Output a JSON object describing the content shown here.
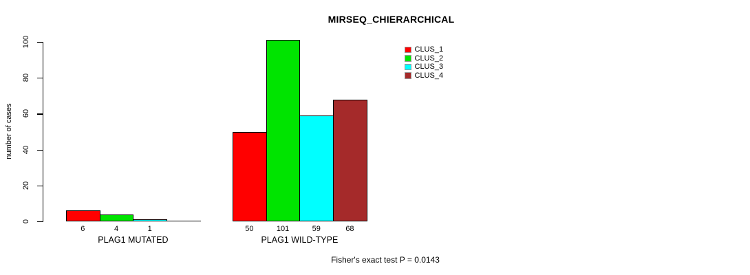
{
  "chart_data": {
    "type": "bar",
    "title": "MIRSEQ_CHIERARCHICAL",
    "ylabel": "number of cases",
    "xlabel": "",
    "ylim": [
      0,
      100
    ],
    "yticks": [
      0,
      20,
      40,
      60,
      80,
      100
    ],
    "grid": false,
    "legend_position": "top-right",
    "series": [
      {
        "name": "CLUS_1",
        "color": "#FF0000"
      },
      {
        "name": "CLUS_2",
        "color": "#00E400"
      },
      {
        "name": "CLUS_3",
        "color": "#00FFFF"
      },
      {
        "name": "CLUS_4",
        "color": "#A52A2A"
      }
    ],
    "groups": [
      {
        "label": "PLAG1 MUTATED",
        "values": [
          6,
          4,
          1,
          0
        ],
        "bar_labels": [
          "6",
          "4",
          "1",
          ""
        ]
      },
      {
        "label": "PLAG1 WILD-TYPE",
        "values": [
          50,
          101,
          59,
          68
        ],
        "bar_labels": [
          "50",
          "101",
          "59",
          "68"
        ]
      }
    ],
    "annotation": "Fisher's exact test P = 0.0143"
  }
}
